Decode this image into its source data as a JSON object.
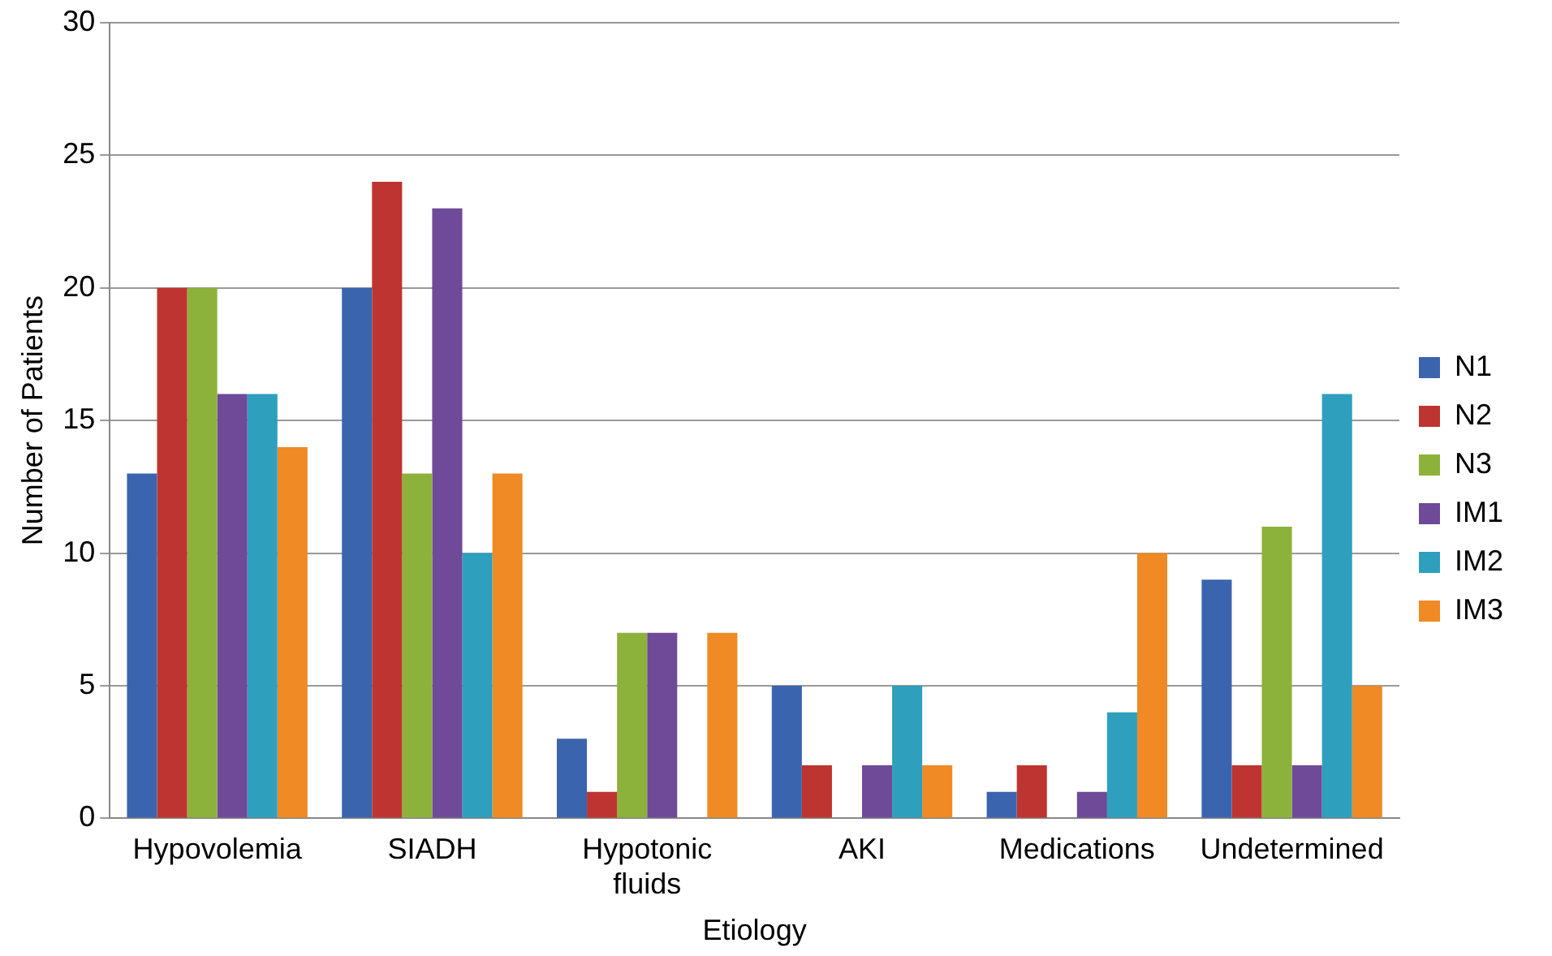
{
  "chart_data": {
    "type": "bar",
    "xlabel": "Etiology",
    "ylabel": "Number of Patients",
    "categories": [
      "Hypovolemia",
      "SIADH",
      "Hypotonic fluids",
      "AKI",
      "Medications",
      "Undetermined"
    ],
    "series": [
      {
        "name": "N1",
        "color": "#3b64ae",
        "values": [
          13,
          20,
          3,
          5,
          1,
          9
        ]
      },
      {
        "name": "N2",
        "color": "#be3430",
        "values": [
          20,
          24,
          1,
          2,
          2,
          2
        ]
      },
      {
        "name": "N3",
        "color": "#8db23c",
        "values": [
          20,
          13,
          7,
          0,
          0,
          11
        ]
      },
      {
        "name": "IM1",
        "color": "#6e4a98",
        "values": [
          16,
          23,
          7,
          2,
          1,
          2
        ]
      },
      {
        "name": "IM2",
        "color": "#2e9fbd",
        "values": [
          16,
          10,
          0,
          5,
          4,
          16
        ]
      },
      {
        "name": "IM3",
        "color": "#ef8a25",
        "values": [
          14,
          13,
          7,
          2,
          10,
          5
        ]
      }
    ],
    "ylim": [
      0,
      30
    ],
    "yticks": [
      0,
      5,
      10,
      15,
      20,
      25,
      30
    ],
    "grid": "y",
    "legend": "right"
  }
}
